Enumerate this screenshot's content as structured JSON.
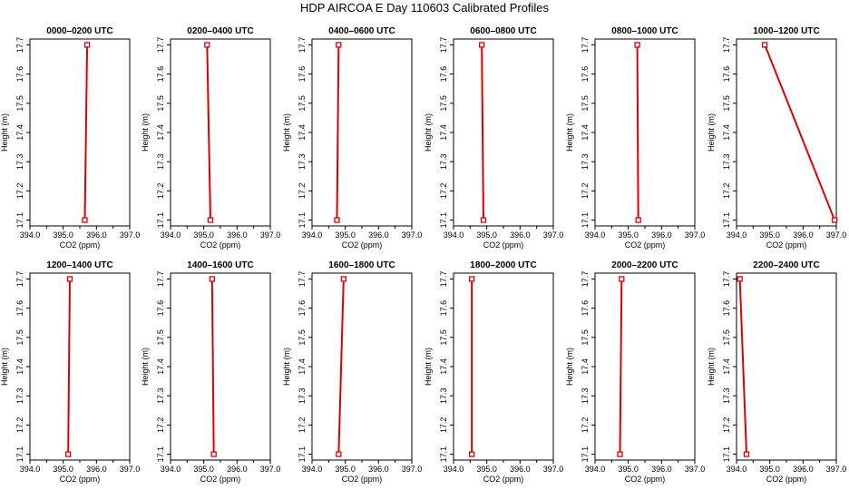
{
  "figure": {
    "title": "HDP AIRCOA E  Day 110603  Calibrated Profiles"
  },
  "chart_data": [
    {
      "type": "line",
      "title": "0000–0200 UTC",
      "xlabel": "CO2 (ppm)",
      "ylabel": "Height (m)",
      "xlim": [
        394,
        397
      ],
      "ylim": [
        17.08,
        17.72
      ],
      "xticks": [
        "394.0",
        "395.0",
        "396.0",
        "397.0"
      ],
      "yticks": [
        "17.1",
        "17.2",
        "17.3",
        "17.4",
        "17.5",
        "17.6",
        "17.7"
      ],
      "series": [
        {
          "x": [
            395.65,
            395.72
          ],
          "y": [
            17.1,
            17.7
          ]
        }
      ],
      "color": "#dd0000",
      "grid": false
    },
    {
      "type": "line",
      "title": "0200–0400 UTC",
      "xlabel": "CO2 (ppm)",
      "ylabel": "Height (m)",
      "xlim": [
        394,
        397
      ],
      "ylim": [
        17.08,
        17.72
      ],
      "xticks": [
        "394.0",
        "395.0",
        "396.0",
        "397.0"
      ],
      "yticks": [
        "17.1",
        "17.2",
        "17.3",
        "17.4",
        "17.5",
        "17.6",
        "17.7"
      ],
      "series": [
        {
          "x": [
            395.2,
            395.1
          ],
          "y": [
            17.1,
            17.7
          ]
        }
      ],
      "color": "#dd0000",
      "grid": false
    },
    {
      "type": "line",
      "title": "0400–0600 UTC",
      "xlabel": "CO2 (ppm)",
      "ylabel": "Height (m)",
      "xlim": [
        394,
        397
      ],
      "ylim": [
        17.08,
        17.72
      ],
      "xticks": [
        "394.0",
        "395.0",
        "396.0",
        "397.0"
      ],
      "yticks": [
        "17.1",
        "17.2",
        "17.3",
        "17.4",
        "17.5",
        "17.6",
        "17.7"
      ],
      "series": [
        {
          "x": [
            394.75,
            394.8
          ],
          "y": [
            17.1,
            17.7
          ]
        }
      ],
      "color": "#dd0000",
      "grid": false
    },
    {
      "type": "line",
      "title": "0600–0800 UTC",
      "xlabel": "CO2 (ppm)",
      "ylabel": "Height (m)",
      "xlim": [
        394,
        397
      ],
      "ylim": [
        17.08,
        17.72
      ],
      "xticks": [
        "394.0",
        "395.0",
        "396.0",
        "397.0"
      ],
      "yticks": [
        "17.1",
        "17.2",
        "17.3",
        "17.4",
        "17.5",
        "17.6",
        "17.7"
      ],
      "series": [
        {
          "x": [
            394.9,
            394.85
          ],
          "y": [
            17.1,
            17.7
          ]
        }
      ],
      "color": "#dd0000",
      "grid": false
    },
    {
      "type": "line",
      "title": "0800–1000 UTC",
      "xlabel": "CO2 (ppm)",
      "ylabel": "Height (m)",
      "xlim": [
        394,
        397
      ],
      "ylim": [
        17.08,
        17.72
      ],
      "xticks": [
        "394.0",
        "395.0",
        "396.0",
        "397.0"
      ],
      "yticks": [
        "17.1",
        "17.2",
        "17.3",
        "17.4",
        "17.5",
        "17.6",
        "17.7"
      ],
      "series": [
        {
          "x": [
            395.3,
            395.27
          ],
          "y": [
            17.1,
            17.7
          ]
        }
      ],
      "color": "#dd0000",
      "grid": false
    },
    {
      "type": "line",
      "title": "1000–1200 UTC",
      "xlabel": "CO2 (ppm)",
      "ylabel": "Height (m)",
      "xlim": [
        394,
        397
      ],
      "ylim": [
        17.08,
        17.72
      ],
      "xticks": [
        "394.0",
        "395.0",
        "396.0",
        "397.0"
      ],
      "yticks": [
        "17.1",
        "17.2",
        "17.3",
        "17.4",
        "17.5",
        "17.6",
        "17.7"
      ],
      "series": [
        {
          "x": [
            396.95,
            394.85
          ],
          "y": [
            17.1,
            17.7
          ]
        }
      ],
      "color": "#dd0000",
      "grid": false
    },
    {
      "type": "line",
      "title": "1200–1400 UTC",
      "xlabel": "CO2 (ppm)",
      "ylabel": "Height (m)",
      "xlim": [
        394,
        397
      ],
      "ylim": [
        17.08,
        17.72
      ],
      "xticks": [
        "394.0",
        "395.0",
        "396.0",
        "397.0"
      ],
      "yticks": [
        "17.1",
        "17.2",
        "17.3",
        "17.4",
        "17.5",
        "17.6",
        "17.7"
      ],
      "series": [
        {
          "x": [
            395.15,
            395.2
          ],
          "y": [
            17.1,
            17.7
          ]
        }
      ],
      "color": "#dd0000",
      "grid": false
    },
    {
      "type": "line",
      "title": "1400–1600 UTC",
      "xlabel": "CO2 (ppm)",
      "ylabel": "Height (m)",
      "xlim": [
        394,
        397
      ],
      "ylim": [
        17.08,
        17.72
      ],
      "xticks": [
        "394.0",
        "395.0",
        "396.0",
        "397.0"
      ],
      "yticks": [
        "17.1",
        "17.2",
        "17.3",
        "17.4",
        "17.5",
        "17.6",
        "17.7"
      ],
      "series": [
        {
          "x": [
            395.3,
            395.25
          ],
          "y": [
            17.1,
            17.7
          ]
        }
      ],
      "color": "#dd0000",
      "grid": false
    },
    {
      "type": "line",
      "title": "1600–1800 UTC",
      "xlabel": "CO2 (ppm)",
      "ylabel": "Height (m)",
      "xlim": [
        394,
        397
      ],
      "ylim": [
        17.08,
        17.72
      ],
      "xticks": [
        "394.0",
        "395.0",
        "396.0",
        "397.0"
      ],
      "yticks": [
        "17.1",
        "17.2",
        "17.3",
        "17.4",
        "17.5",
        "17.6",
        "17.7"
      ],
      "series": [
        {
          "x": [
            394.8,
            394.95
          ],
          "y": [
            17.1,
            17.7
          ]
        }
      ],
      "color": "#dd0000",
      "grid": false
    },
    {
      "type": "line",
      "title": "1800–2000 UTC",
      "xlabel": "CO2 (ppm)",
      "ylabel": "Height (m)",
      "xlim": [
        394,
        397
      ],
      "ylim": [
        17.08,
        17.72
      ],
      "xticks": [
        "394.0",
        "395.0",
        "396.0",
        "397.0"
      ],
      "yticks": [
        "17.1",
        "17.2",
        "17.3",
        "17.4",
        "17.5",
        "17.6",
        "17.7"
      ],
      "series": [
        {
          "x": [
            394.55,
            394.55
          ],
          "y": [
            17.1,
            17.7
          ]
        }
      ],
      "color": "#dd0000",
      "grid": false
    },
    {
      "type": "line",
      "title": "2000–2200 UTC",
      "xlabel": "CO2 (ppm)",
      "ylabel": "Height (m)",
      "xlim": [
        394,
        397
      ],
      "ylim": [
        17.08,
        17.72
      ],
      "xticks": [
        "394.0",
        "395.0",
        "396.0",
        "397.0"
      ],
      "yticks": [
        "17.1",
        "17.2",
        "17.3",
        "17.4",
        "17.5",
        "17.6",
        "17.7"
      ],
      "series": [
        {
          "x": [
            394.75,
            394.8
          ],
          "y": [
            17.1,
            17.7
          ]
        }
      ],
      "color": "#dd0000",
      "grid": false
    },
    {
      "type": "line",
      "title": "2200–2400 UTC",
      "xlabel": "CO2 (ppm)",
      "ylabel": "Height (m)",
      "xlim": [
        394,
        397
      ],
      "ylim": [
        17.08,
        17.72
      ],
      "xticks": [
        "394.0",
        "395.0",
        "396.0",
        "397.0"
      ],
      "yticks": [
        "17.1",
        "17.2",
        "17.3",
        "17.4",
        "17.5",
        "17.6",
        "17.7"
      ],
      "series": [
        {
          "x": [
            394.3,
            394.1
          ],
          "y": [
            17.1,
            17.7
          ]
        }
      ],
      "color": "#dd0000",
      "grid": false
    }
  ]
}
